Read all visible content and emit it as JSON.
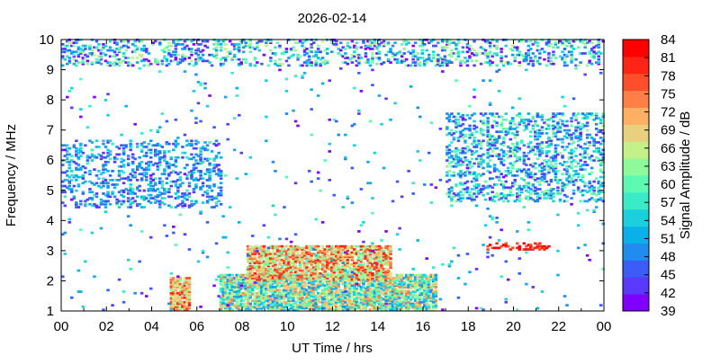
{
  "chart_data": {
    "type": "heatmap",
    "title": "2026-02-14",
    "xlabel": "UT Time / hrs",
    "ylabel": "Frequency / MHz",
    "colorbar_label": "Signal Amplitude / dB",
    "xlim": [
      0,
      24
    ],
    "ylim": [
      1,
      10
    ],
    "x_ticks": [
      "00",
      "02",
      "04",
      "06",
      "08",
      "10",
      "12",
      "14",
      "16",
      "18",
      "20",
      "22",
      "00"
    ],
    "y_ticks": [
      "1",
      "2",
      "3",
      "4",
      "5",
      "6",
      "7",
      "8",
      "9",
      "10"
    ],
    "colorbar_ticks": [
      "39",
      "42",
      "45",
      "48",
      "51",
      "54",
      "57",
      "60",
      "63",
      "66",
      "69",
      "72",
      "75",
      "78",
      "81",
      "84"
    ],
    "colorbar_range": [
      39,
      84
    ],
    "colormap": [
      "#7f00ff",
      "#5a39fd",
      "#3c5cf7",
      "#1f8cf0",
      "#0bb0e8",
      "#1ad0dc",
      "#3aebc8",
      "#5cf9b2",
      "#8ffa9a",
      "#c4f08a",
      "#e8d080",
      "#ffb064",
      "#ff7f46",
      "#ff4e2c",
      "#ff2416",
      "#ff0000"
    ],
    "regions": [
      {
        "x": [
          7.0,
          16.5
        ],
        "y": [
          1.0,
          2.2
        ],
        "dB": [
          48,
          75
        ],
        "density": 0.75
      },
      {
        "x": [
          8.2,
          14.5
        ],
        "y": [
          2.0,
          3.1
        ],
        "dB": [
          60,
          81
        ],
        "density": 0.65
      },
      {
        "x": [
          4.8,
          5.6
        ],
        "y": [
          1.0,
          2.1
        ],
        "dB": [
          63,
          81
        ],
        "density": 0.7
      },
      {
        "x": [
          0.0,
          7.0
        ],
        "y": [
          4.4,
          6.6
        ],
        "dB": [
          42,
          57
        ],
        "density": 0.22
      },
      {
        "x": [
          17.0,
          24.0
        ],
        "y": [
          4.6,
          7.5
        ],
        "dB": [
          42,
          63
        ],
        "density": 0.25
      },
      {
        "x": [
          0.0,
          24.0
        ],
        "y": [
          9.1,
          10.0
        ],
        "dB": [
          39,
          66
        ],
        "density": 0.22
      },
      {
        "x": [
          0.0,
          24.0
        ],
        "y": [
          1.0,
          9.0
        ],
        "dB": [
          39,
          60
        ],
        "density": 0.012
      },
      {
        "x": [
          18.8,
          21.6
        ],
        "y": [
          3.0,
          3.2
        ],
        "dB": [
          75,
          84
        ],
        "density": 0.35
      }
    ]
  }
}
